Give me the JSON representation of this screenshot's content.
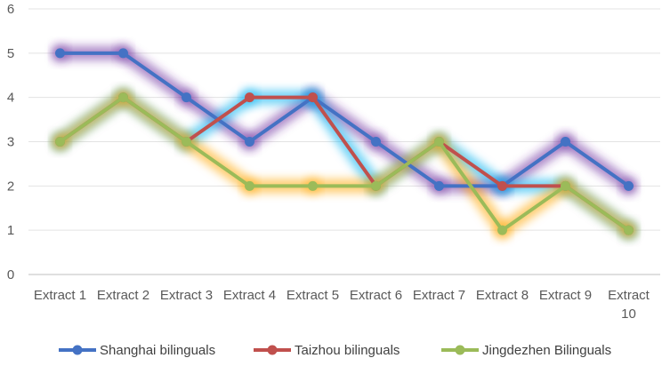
{
  "chart_data": {
    "type": "line",
    "categories": [
      "Extract 1",
      "Extract 2",
      "Extract 3",
      "Extract 4",
      "Extract 5",
      "Extract 6",
      "Extract 7",
      "Extract 8",
      "Extract 9",
      "Extract 10"
    ],
    "category_labels": [
      [
        "Extract 1"
      ],
      [
        "Extract 2"
      ],
      [
        "Extract 3"
      ],
      [
        "Extract 4"
      ],
      [
        "Extract 5"
      ],
      [
        "Extract 6"
      ],
      [
        "Extract 7"
      ],
      [
        "Extract 8"
      ],
      [
        "Extract 9"
      ],
      [
        "Extract",
        "10"
      ]
    ],
    "ylim": [
      0,
      6
    ],
    "yticks": [
      "0",
      "1",
      "2",
      "3",
      "4",
      "5",
      "6"
    ],
    "grid": true,
    "legend_position": "bottom",
    "series": [
      {
        "name": "Shanghai bilinguals",
        "values": [
          5,
          5,
          4,
          3,
          4,
          3,
          2,
          2,
          3,
          2
        ],
        "color": "#4472C4",
        "glow": "#7030A0"
      },
      {
        "name": "Taizhou bilinguals",
        "values": [
          3,
          4,
          3,
          4,
          4,
          2,
          3,
          2,
          2,
          1
        ],
        "color": "#C0504D",
        "glow": "#00B0F0"
      },
      {
        "name": "Jingdezhen Bilinguals",
        "values": [
          3,
          4,
          3,
          2,
          2,
          2,
          3,
          1,
          2,
          1
        ],
        "color": "#9BBB59",
        "glow": "#FFA500"
      }
    ]
  }
}
